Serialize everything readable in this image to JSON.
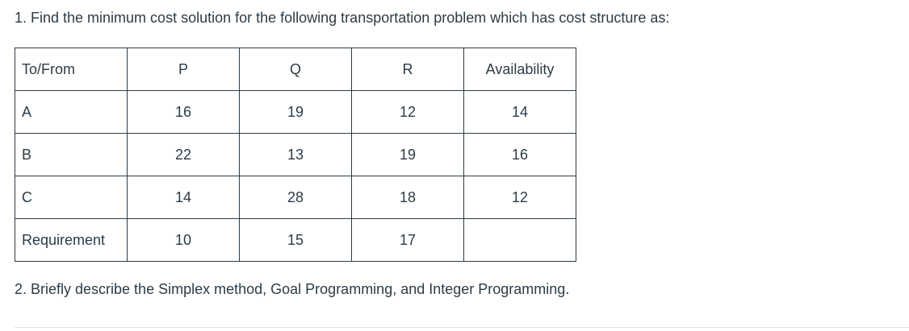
{
  "question1": "1. Find the minimum cost solution for the following transportation problem which has cost structure as:",
  "table": {
    "header": [
      "To/From",
      "P",
      "Q",
      "R",
      "Availability"
    ],
    "rows": [
      [
        "A",
        16,
        19,
        12,
        14
      ],
      [
        "B",
        22,
        13,
        19,
        16
      ],
      [
        "C",
        14,
        28,
        18,
        12
      ],
      [
        "Requirement",
        10,
        15,
        17
      ]
    ]
  },
  "question2": "2. Briefly describe the Simplex method, Goal Programming, and Integer Programming."
}
